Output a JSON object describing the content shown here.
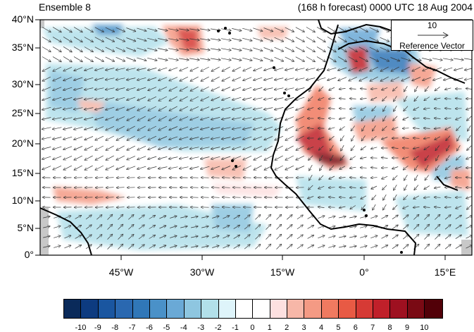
{
  "header": {
    "left_title": "Ensemble 8",
    "right_title": "(168 h forecast) 0000 UTC 18 Aug 2004"
  },
  "map": {
    "lat_labels": [
      "40°N",
      "35°N",
      "30°N",
      "25°N",
      "20°N",
      "15°N",
      "10°N",
      "5°N",
      "0°"
    ],
    "lon_labels": [
      "45°W",
      "30°W",
      "15°W",
      "0°",
      "15°E"
    ],
    "land_color": "#c8c8c8",
    "wind_arrow_color": "#333333"
  },
  "reference_vector": {
    "magnitude": "10",
    "label": "Reference Vector"
  },
  "colorbar": {
    "labels": [
      "-10",
      "-9",
      "-8",
      "-7",
      "-6",
      "-5",
      "-4",
      "-3",
      "-2",
      "-1",
      "0",
      "1",
      "2",
      "3",
      "4",
      "5",
      "6",
      "7",
      "8",
      "9",
      "10"
    ],
    "colors": [
      "#0a2a5a",
      "#0d3b80",
      "#1a56a0",
      "#2a68b0",
      "#3077b8",
      "#4a91c8",
      "#6aa9d6",
      "#8ec6e0",
      "#b2e0ea",
      "#def4fa",
      "#ffffff",
      "#ffffff",
      "#fde0e0",
      "#f7b7a8",
      "#f49a84",
      "#f07a60",
      "#e85a44",
      "#d63a35",
      "#c0202a",
      "#9e1020",
      "#7a0a14",
      "#520008"
    ]
  }
}
